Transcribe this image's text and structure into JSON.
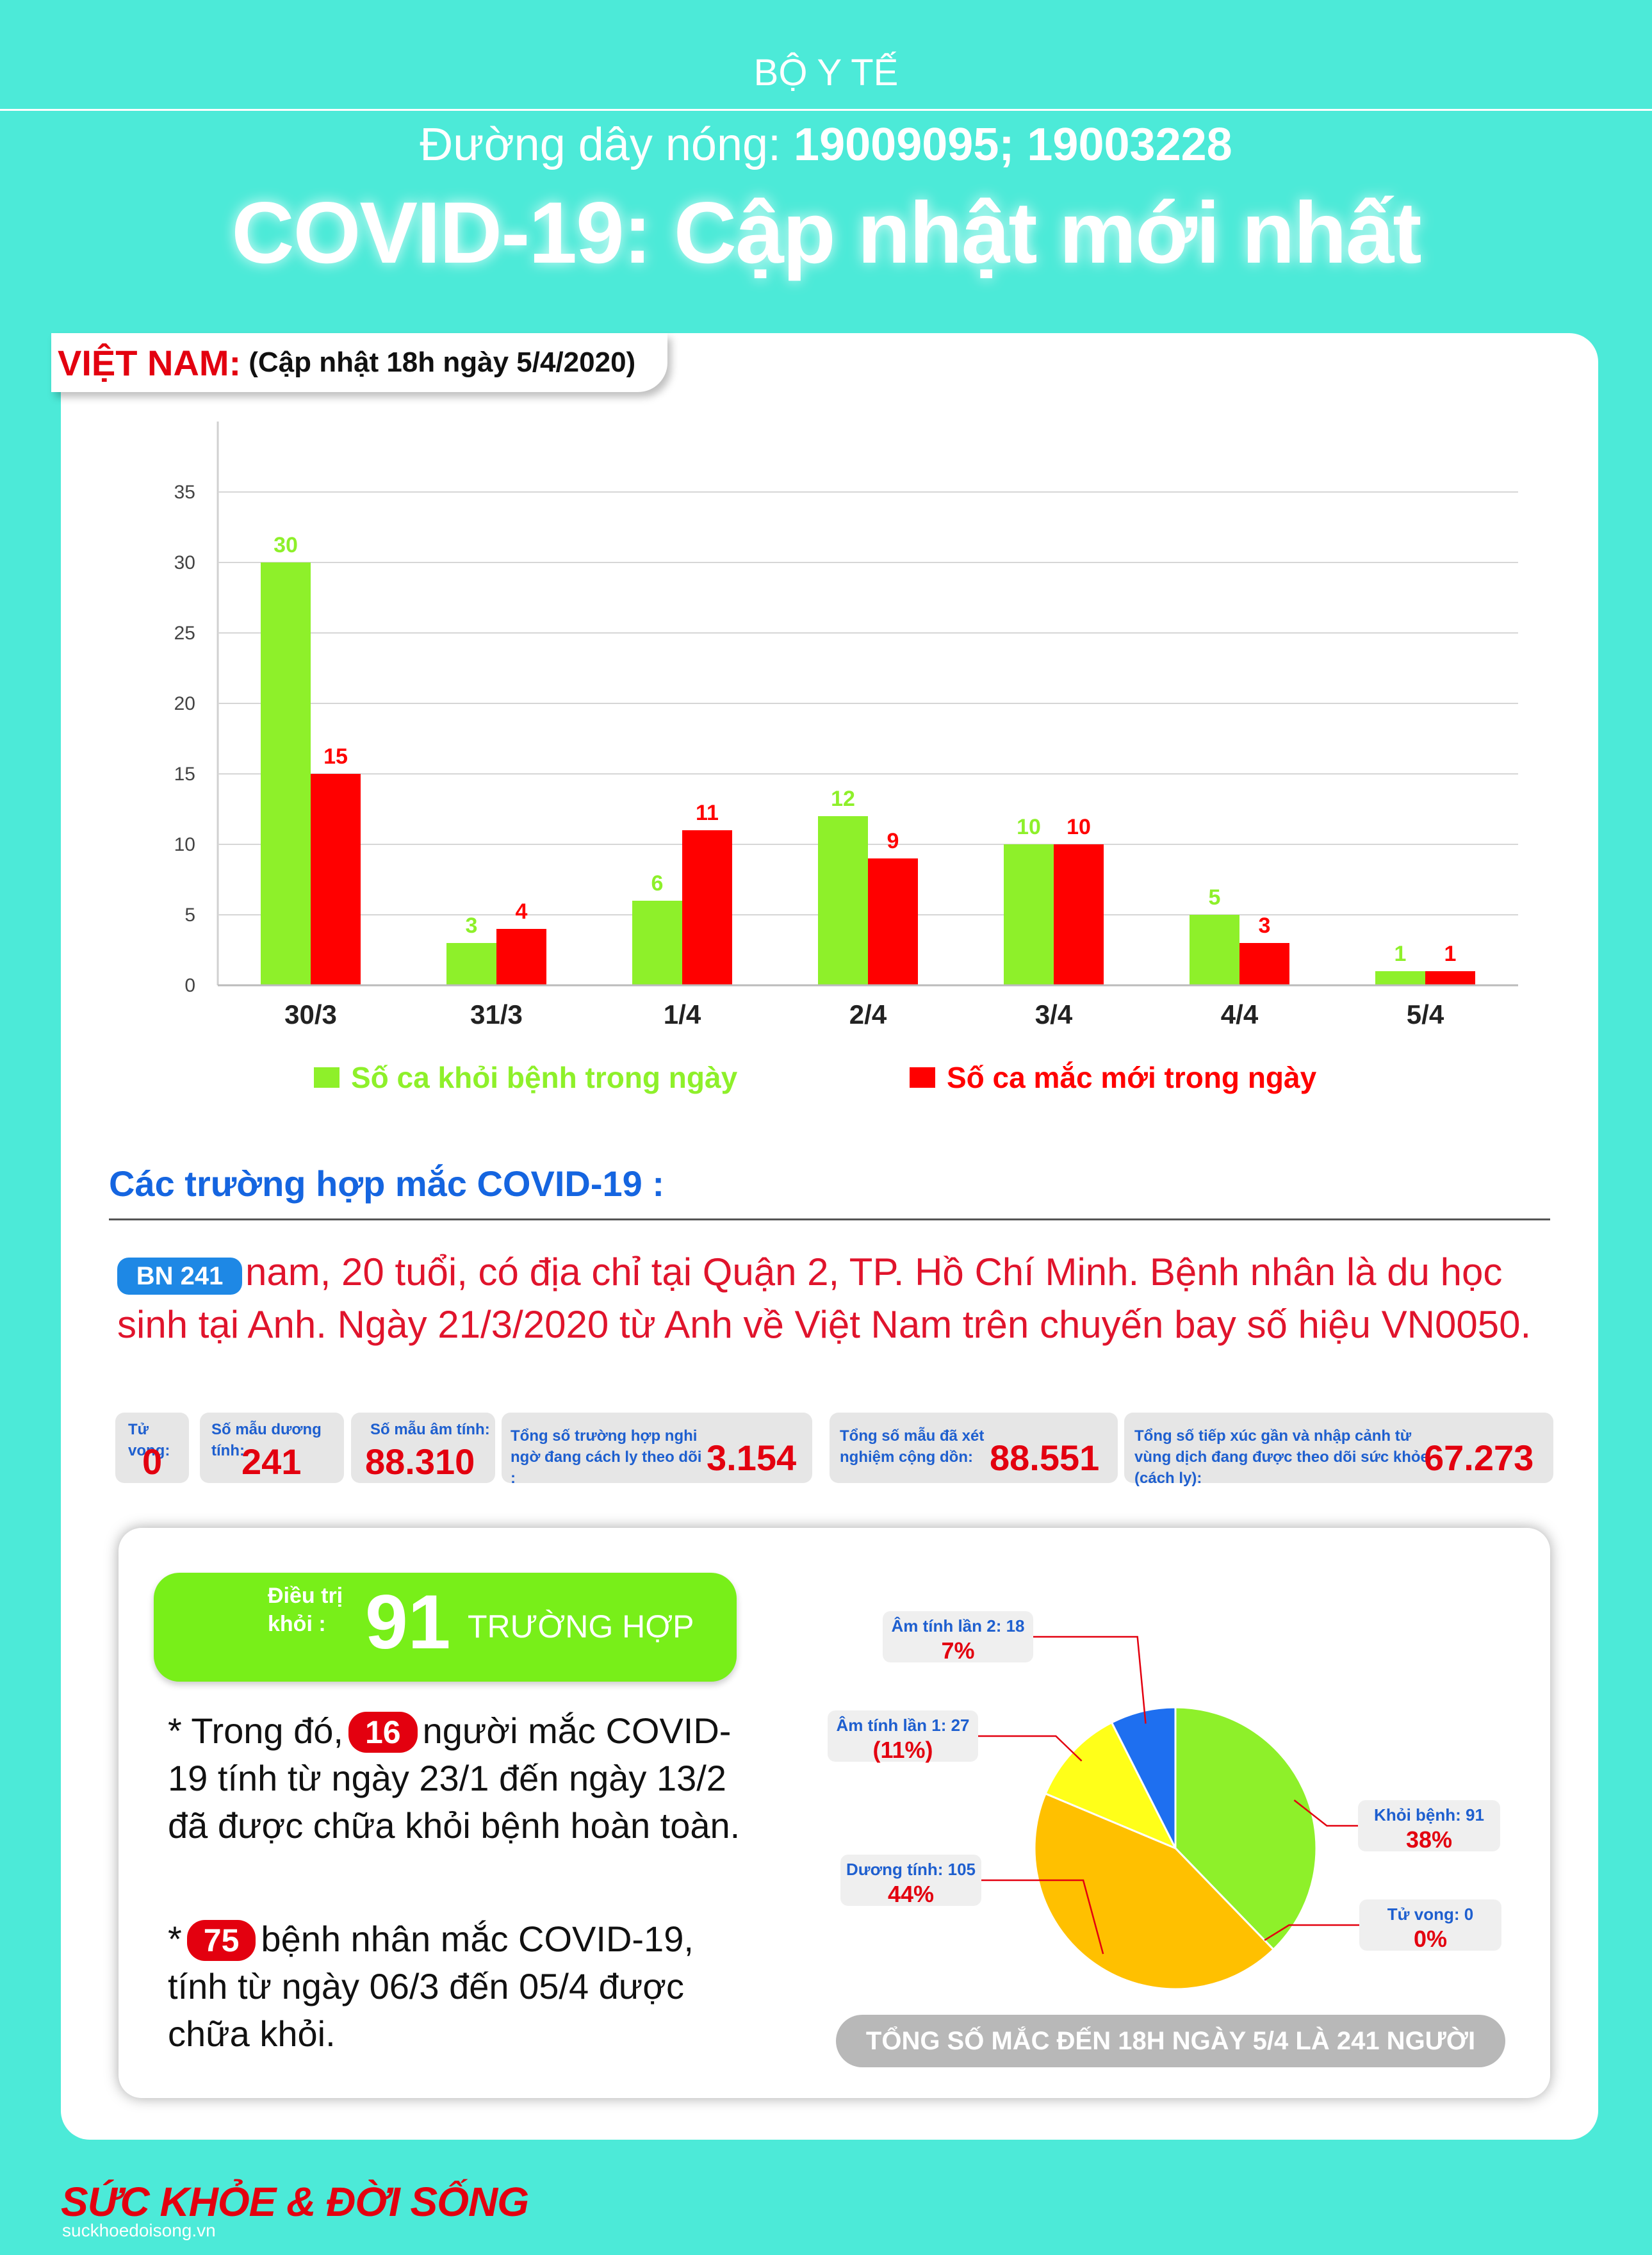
{
  "header": {
    "org": "BỘ Y TẾ",
    "hotline_label": "Đường dây nóng: ",
    "hotline_numbers": "19009095; 19003228",
    "title": "COVID-19: Cập nhật mới nhất"
  },
  "vietnam": {
    "country": "VIỆT NAM:",
    "update": "(Cập nhật 18h ngày 5/4/2020)"
  },
  "chart_data": {
    "type": "bar",
    "categories": [
      "30/3",
      "31/3",
      "1/4",
      "2/4",
      "3/4",
      "4/4",
      "5/4"
    ],
    "series": [
      {
        "name": "Số ca khỏi bệnh trong ngày",
        "values": [
          30,
          3,
          6,
          12,
          10,
          5,
          1
        ],
        "color": "#8ef02a"
      },
      {
        "name": "Số ca mắc mới trong ngày",
        "values": [
          15,
          4,
          11,
          9,
          10,
          3,
          1
        ],
        "color": "#ff0000"
      }
    ],
    "yticks": [
      0,
      5,
      10,
      15,
      20,
      25,
      30,
      35
    ],
    "ylim": [
      0,
      35
    ],
    "grid": true,
    "legend": "bottom"
  },
  "cases": {
    "heading": "Các trường hợp mắc COVID-19 :",
    "badge": "BN 241",
    "text": "nam, 20 tuổi, có địa chỉ tại Quận 2, TP. Hồ Chí Minh. Bệnh nhân là du học sinh tại Anh. Ngày 21/3/2020 từ Anh  về Việt Nam trên chuyến bay số hiệu VN0050."
  },
  "stats": [
    {
      "label": "Tử vong:",
      "value": "0"
    },
    {
      "label": "Số mẫu dương tính:",
      "value": "241"
    },
    {
      "label": "Số mẫu âm tính:",
      "value": "88.310"
    },
    {
      "label": "Tổng số trường hợp nghi ngờ đang cách ly theo dõi :",
      "value": "3.154"
    },
    {
      "label": "Tổng số mẫu đã xét nghiệm cộng dồn:",
      "value": "88.551"
    },
    {
      "label": "Tổng số tiếp xúc gần và nhập cảnh từ vùng dịch đang được theo dõi sức khỏe (cách ly):",
      "value": "67.273"
    }
  ],
  "recovered": {
    "label": "Điều trị khỏi :",
    "number": "91",
    "unit": "TRƯỜNG HỢP",
    "note1_prefix": "* Trong đó,",
    "note1_num": "16",
    "note1_text": "người mắc COVID-19 tính từ ngày 23/1 đến ngày 13/2 đã được chữa khỏi bệnh hoàn toàn.",
    "note2_prefix": "*",
    "note2_num": "75",
    "note2_text": "bệnh nhân  mắc COVID-19, tính từ ngày 06/3 đến 05/4 được chữa khỏi."
  },
  "pie": {
    "slices": [
      {
        "label": "Khỏi bệnh: 91",
        "pct": "38%",
        "value": 91,
        "color": "#8ef02a"
      },
      {
        "label": "Tử vong: 0",
        "pct": "0%",
        "value": 0,
        "color": "#e3000f"
      },
      {
        "label": "Dương tính: 105",
        "pct": "44%",
        "value": 105,
        "color": "#ffc000"
      },
      {
        "label": "Âm tính lần 1: 27",
        "pct": "(11%)",
        "value": 27,
        "color": "#ffff19"
      },
      {
        "label": "Âm tính lần 2: 18",
        "pct": "7%",
        "value": 18,
        "color": "#1e6ff0"
      }
    ],
    "total": "TỔNG SỐ MẮC ĐẾN 18H NGÀY 5/4 LÀ 241 NGƯỜI"
  },
  "logo": {
    "name": "SỨC KHỎE & ĐỜI SỐNG",
    "url": "suckhoedoisong.vn"
  }
}
